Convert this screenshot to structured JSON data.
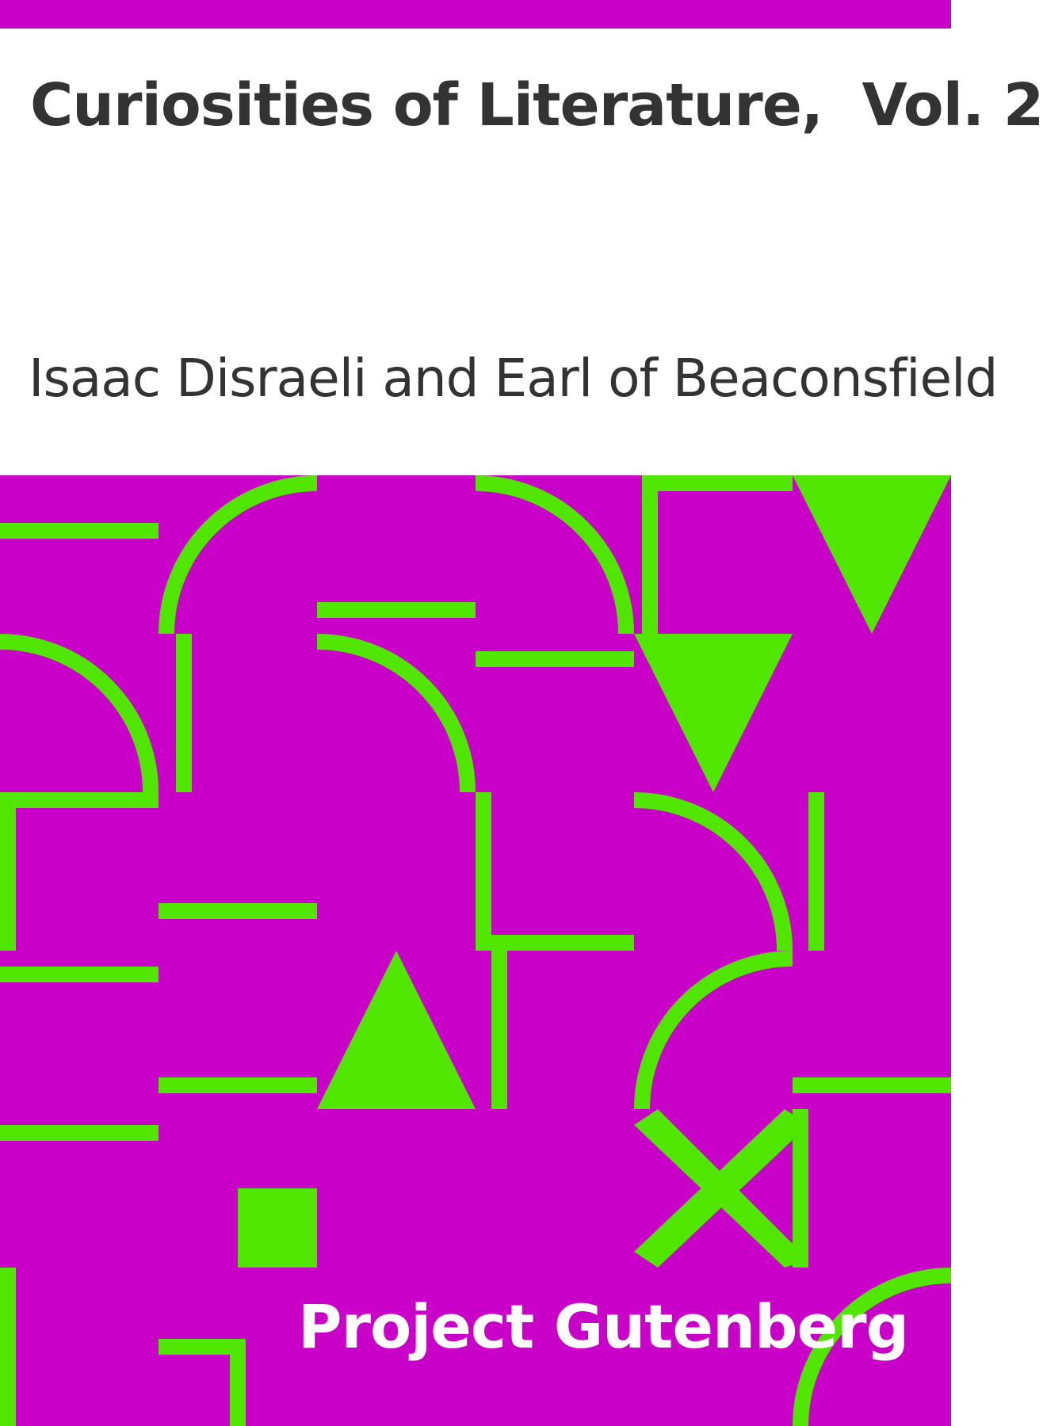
{
  "book": {
    "title": "Curiosities of Literature,  Vol. 2",
    "author": "Isaac Disraeli and Earl of Beaconsfield"
  },
  "publisher": {
    "name": "Project Gutenberg"
  },
  "colors": {
    "background": "#c800c8",
    "accent": "#50e600",
    "text": "#333333",
    "header_background": "#ffffff",
    "publisher_text": "#ffffff"
  }
}
